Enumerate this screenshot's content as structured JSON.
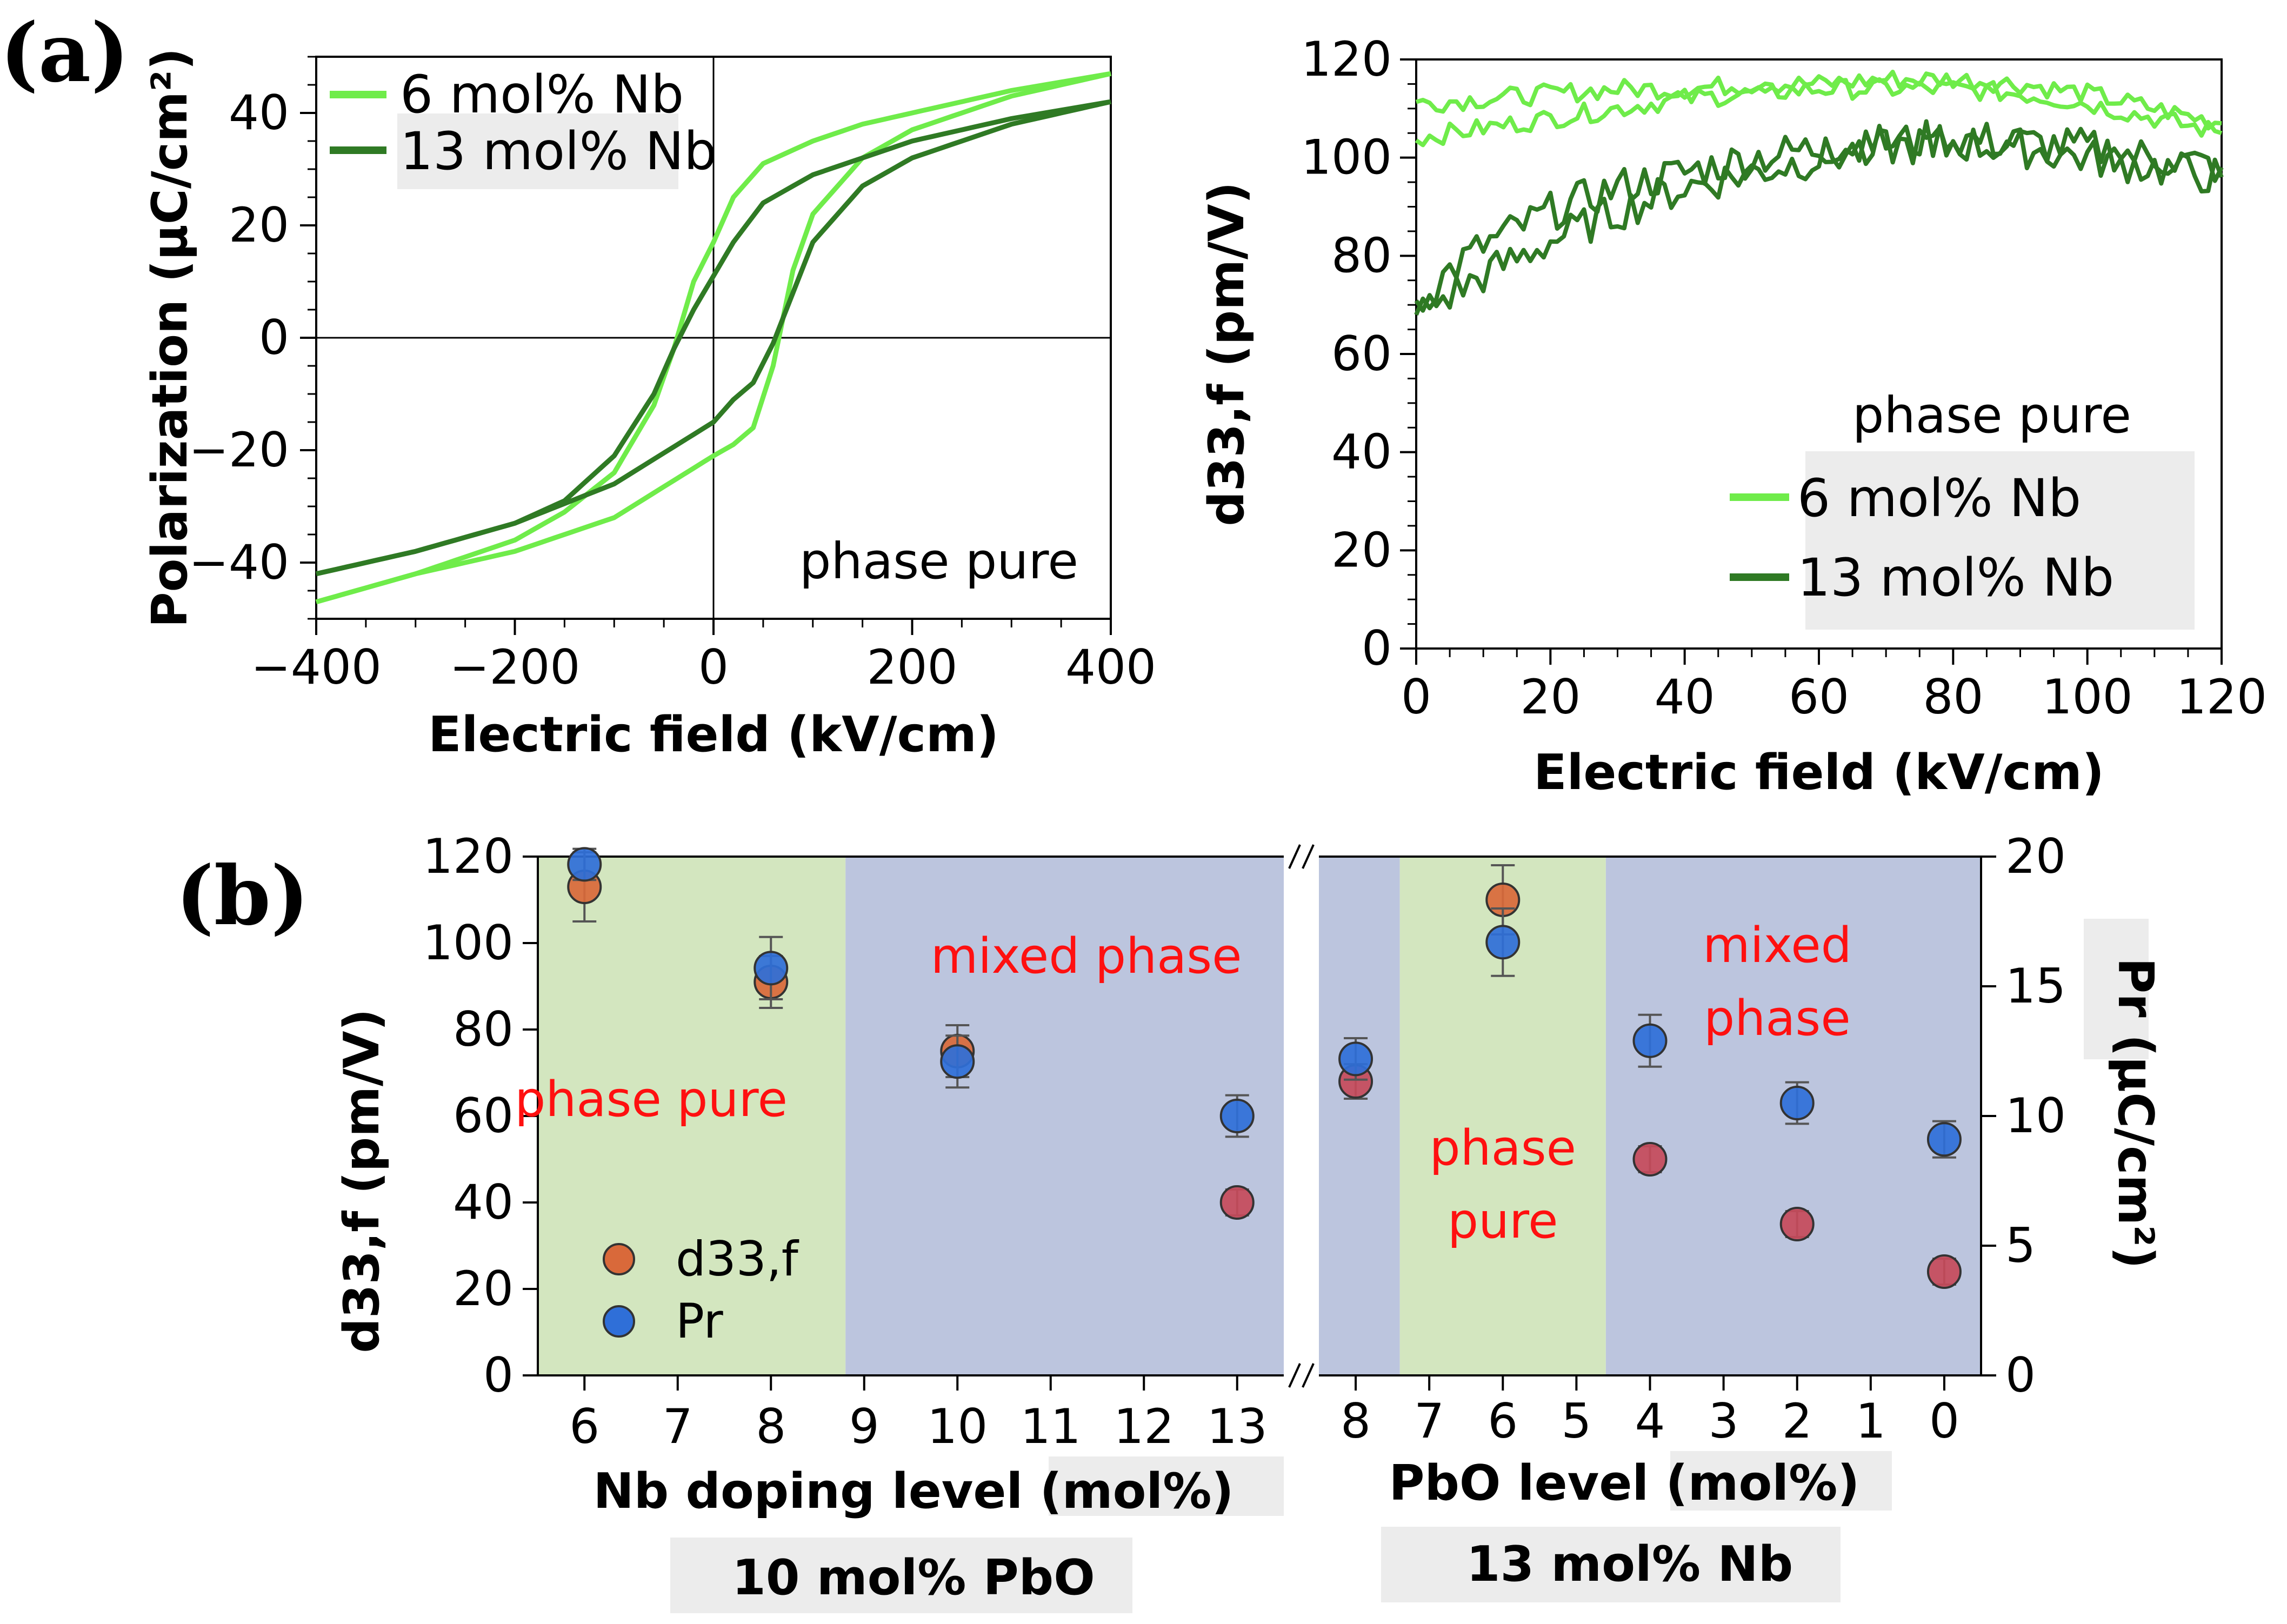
{
  "panel_a_label": "(a)",
  "panel_b_label": "(b)",
  "colors": {
    "nb6": "#6fec4a",
    "nb13": "#2f7a24",
    "phase_pure_bg": "#d3e6bf",
    "mixed_phase_bg": "#bcc5de",
    "d33_marker": "#d9693a",
    "d33_marker_low": "#c54a5a",
    "pr_marker": "#2f6fd8",
    "region_text": "#ff1010"
  },
  "chart_data": [
    {
      "id": "a-left",
      "type": "line",
      "title": "",
      "xlabel": "Electric field (kV/cm)",
      "ylabel": "Polarization (µC/cm²)",
      "xlim": [
        -400,
        400
      ],
      "ylim": [
        -50,
        50
      ],
      "xticks": [
        -400,
        -200,
        0,
        200,
        400
      ],
      "xtick_labels": [
        "−400",
        "−200",
        "0",
        "200",
        "400"
      ],
      "yticks": [
        -40,
        -20,
        0,
        20,
        40
      ],
      "ytick_labels": [
        "−40",
        "−20",
        "0",
        "20",
        "40"
      ],
      "annotation": "phase pure",
      "legend": [
        "6 mol% Nb",
        "13 mol% Nb"
      ],
      "series": [
        {
          "name": "6 mol% Nb",
          "branches": [
            {
              "x": [
                -400,
                -300,
                -200,
                -150,
                -100,
                -60,
                -40,
                -20,
                0,
                20,
                50,
                100,
                150,
                200,
                300,
                400
              ],
              "y": [
                -47,
                -42,
                -36,
                -31,
                -24,
                -12,
                -2,
                10,
                17,
                25,
                31,
                35,
                38,
                40,
                44,
                47
              ]
            },
            {
              "x": [
                400,
                300,
                200,
                150,
                100,
                80,
                60,
                40,
                20,
                0,
                -100,
                -200,
                -300,
                -400
              ],
              "y": [
                47,
                43,
                37,
                32,
                22,
                12,
                -5,
                -16,
                -19,
                -21,
                -32,
                -38,
                -42,
                -47
              ]
            }
          ]
        },
        {
          "name": "13 mol% Nb",
          "branches": [
            {
              "x": [
                -400,
                -300,
                -200,
                -150,
                -100,
                -60,
                -40,
                -20,
                0,
                20,
                50,
                100,
                150,
                200,
                300,
                400
              ],
              "y": [
                -42,
                -38,
                -33,
                -29,
                -21,
                -10,
                -2,
                5,
                11,
                17,
                24,
                29,
                32,
                35,
                39,
                42
              ]
            },
            {
              "x": [
                400,
                300,
                200,
                150,
                100,
                80,
                60,
                40,
                20,
                0,
                -100,
                -200,
                -300,
                -400
              ],
              "y": [
                42,
                38,
                32,
                27,
                17,
                8,
                -1,
                -8,
                -11,
                -15,
                -26,
                -33,
                -38,
                -42
              ]
            }
          ]
        }
      ]
    },
    {
      "id": "a-right",
      "type": "line",
      "title": "",
      "xlabel": "Electric field (kV/cm)",
      "ylabel": "d33,f (pm/V)",
      "xlim": [
        0,
        120
      ],
      "ylim": [
        0,
        120
      ],
      "xticks": [
        0,
        20,
        40,
        60,
        80,
        100,
        120
      ],
      "yticks": [
        0,
        20,
        40,
        60,
        80,
        100,
        120
      ],
      "annotation": "phase pure",
      "legend": [
        "6 mol% Nb",
        "13 mol% Nb"
      ],
      "series": [
        {
          "name": "6 mol% Nb",
          "branches": [
            {
              "x": [
                0,
                10,
                20,
                30,
                40,
                50,
                60,
                70,
                80,
                90,
                100,
                110,
                120
              ],
              "y": [
                111,
                112,
                113,
                114,
                114,
                115,
                115,
                116,
                116,
                115,
                113,
                110,
                107
              ]
            },
            {
              "x": [
                0,
                10,
                20,
                30,
                40,
                50,
                60,
                70,
                80,
                90,
                100,
                110,
                120
              ],
              "y": [
                104,
                106,
                108,
                110,
                112,
                113,
                114,
                114,
                114,
                113,
                111,
                108,
                105
              ]
            }
          ]
        },
        {
          "name": "13 mol% Nb",
          "branches": [
            {
              "x": [
                0,
                5,
                10,
                20,
                30,
                40,
                50,
                60,
                70,
                80,
                90,
                100,
                110,
                120
              ],
              "y": [
                70,
                77,
                82,
                89,
                94,
                97,
                100,
                102,
                103,
                104,
                103,
                102,
                100,
                98
              ]
            },
            {
              "x": [
                0,
                5,
                10,
                20,
                30,
                40,
                50,
                60,
                70,
                80,
                90,
                100,
                110,
                120
              ],
              "y": [
                68,
                72,
                76,
                83,
                89,
                94,
                97,
                100,
                102,
                103,
                102,
                100,
                98,
                96
              ]
            }
          ]
        }
      ]
    },
    {
      "id": "b",
      "type": "scatter",
      "title": "",
      "ylabel_left": "d33,f (pm/V)",
      "ylabel_right": "Pr (µC/cm²)",
      "ylim_left": [
        0,
        120
      ],
      "ylim_right": [
        0,
        20
      ],
      "yticks_left": [
        0,
        20,
        40,
        60,
        80,
        100,
        120
      ],
      "yticks_right": [
        0,
        5,
        10,
        15,
        20
      ],
      "left_segment": {
        "xlabel": "Nb doping level (mol%)",
        "sublabel": "10 mol% PbO",
        "xticks": [
          6,
          7,
          8,
          9,
          10,
          11,
          12,
          13
        ]
      },
      "right_segment": {
        "xlabel": "PbO level (mol%)",
        "sublabel": "13 mol% Nb",
        "xticks": [
          8,
          7,
          6,
          5,
          4,
          3,
          2,
          1,
          0
        ]
      },
      "regions": [
        {
          "segment": "left",
          "from": 5.5,
          "to": 8.8,
          "label": "phase pure",
          "kind": "pure"
        },
        {
          "segment": "left",
          "from": 8.8,
          "to": 13.5,
          "label": "mixed phase",
          "kind": "mixed"
        },
        {
          "segment": "right",
          "from": 8.5,
          "to": 7.4,
          "label": "",
          "kind": "mixed"
        },
        {
          "segment": "right",
          "from": 7.4,
          "to": 4.6,
          "label_lines": [
            "phase",
            "pure"
          ],
          "kind": "pure"
        },
        {
          "segment": "right",
          "from": 4.6,
          "to": -0.5,
          "label_lines": [
            "mixed",
            "phase"
          ],
          "kind": "mixed"
        }
      ],
      "series": [
        {
          "name": "d33,f",
          "axis": "left",
          "points": [
            {
              "segment": "left",
              "x": 6,
              "y": 113,
              "err": 8
            },
            {
              "segment": "left",
              "x": 8,
              "y": 91,
              "err": 6
            },
            {
              "segment": "left",
              "x": 10,
              "y": 75,
              "err": 6
            },
            {
              "segment": "left",
              "x": 13,
              "y": 40,
              "err": 3
            },
            {
              "segment": "right",
              "x": 8,
              "y": 68,
              "err": 4
            },
            {
              "segment": "right",
              "x": 6,
              "y": 110,
              "err": 8
            },
            {
              "segment": "right",
              "x": 4,
              "y": 50,
              "err": 3
            },
            {
              "segment": "right",
              "x": 2,
              "y": 35,
              "err": 3
            },
            {
              "segment": "right",
              "x": 0,
              "y": 24,
              "err": 3
            }
          ]
        },
        {
          "name": "Pr",
          "axis": "right",
          "points": [
            {
              "segment": "left",
              "x": 6,
              "y": 19.7,
              "err": 0.6
            },
            {
              "segment": "left",
              "x": 8,
              "y": 15.7,
              "err": 1.2
            },
            {
              "segment": "left",
              "x": 10,
              "y": 12.1,
              "err": 1.0
            },
            {
              "segment": "left",
              "x": 13,
              "y": 10.0,
              "err": 0.8
            },
            {
              "segment": "right",
              "x": 8,
              "y": 12.2,
              "err": 0.8
            },
            {
              "segment": "right",
              "x": 6,
              "y": 16.7,
              "err": 1.3
            },
            {
              "segment": "right",
              "x": 4,
              "y": 12.9,
              "err": 1.0
            },
            {
              "segment": "right",
              "x": 2,
              "y": 10.5,
              "err": 0.8
            },
            {
              "segment": "right",
              "x": 0,
              "y": 9.1,
              "err": 0.7
            }
          ]
        }
      ],
      "legend": [
        "d33,f",
        "Pr"
      ]
    }
  ]
}
